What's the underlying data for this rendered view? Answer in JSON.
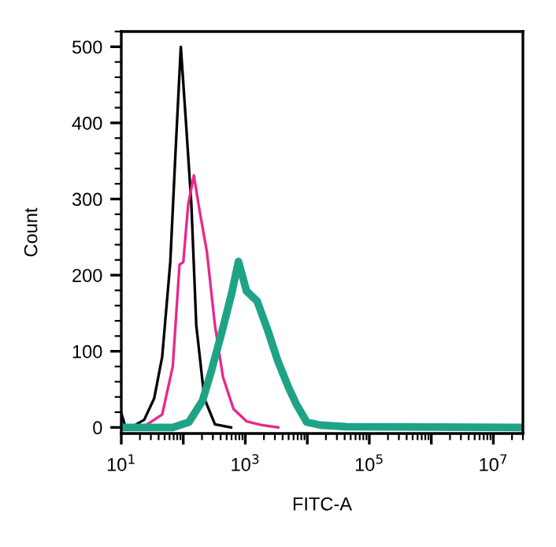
{
  "chart_data": {
    "type": "line",
    "xlabel": "FITC-A",
    "ylabel": "Count",
    "log": "x",
    "xlim": [
      10,
      30000000
    ],
    "ylim": [
      -8,
      520
    ],
    "xticks": [
      {
        "value": 10,
        "label": "10$^{1}$"
      },
      {
        "value": 100,
        "label": null
      },
      {
        "value": 1000,
        "label": "10$^{3}$"
      },
      {
        "value": 10000,
        "label": null
      },
      {
        "value": 100000,
        "label": "10$^{5}$"
      },
      {
        "value": 1000000,
        "label": null
      },
      {
        "value": 10000000,
        "label": "10$^{7}$"
      }
    ],
    "yticks": [
      0,
      100,
      200,
      300,
      400,
      500
    ],
    "grid": false,
    "legend": false,
    "marker": "none",
    "line_style": "solid",
    "series": [
      {
        "color": "#000000",
        "x": [
          10,
          11.7,
          15.8,
          23.4,
          33.9,
          45.7,
          61.7,
          75,
          91.2,
          110,
          135,
          162,
          219,
          324,
          589
        ],
        "values": [
          19,
          0,
          2,
          10,
          38,
          93,
          217,
          362,
          500,
          403,
          293,
          134,
          38,
          4,
          0
        ]
      },
      {
        "color": "#e8288c",
        "x": [
          11.7,
          24,
          45.7,
          67.6,
          87,
          100,
          120,
          148,
          182,
          240,
          324,
          437,
          646,
          1047,
          1862,
          3388
        ],
        "values": [
          0,
          2,
          17,
          80,
          214,
          217,
          293,
          331,
          286,
          231,
          134,
          66,
          24,
          8,
          3,
          0
        ]
      },
      {
        "color": "#1fa386",
        "x": [
          11.7,
          67.6,
          123,
          204,
          288,
          427,
          603,
          776,
          1047,
          1549,
          2291,
          3388,
          5012,
          6607,
          9772,
          16218,
          42658,
          30000000
        ],
        "values": [
          0,
          0,
          7,
          35,
          76,
          128,
          176,
          218,
          179,
          166,
          128,
          86,
          52,
          31,
          7,
          3,
          1,
          0
        ]
      }
    ]
  }
}
